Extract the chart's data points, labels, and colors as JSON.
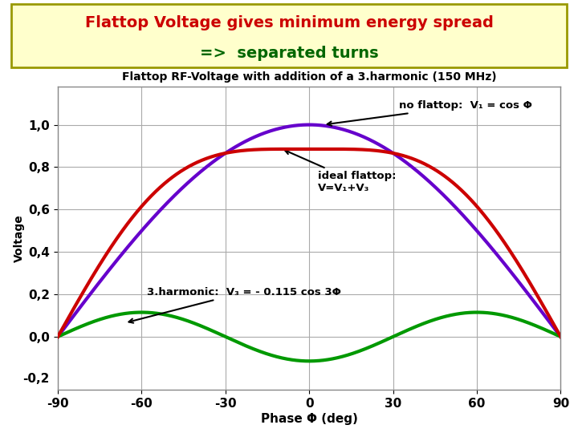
{
  "title_line1": "Flattop Voltage gives minimum energy spread",
  "title_line2": "=>  separated turns",
  "subtitle": "Flattop RF-Voltage with addition of a 3.harmonic (150 MHz)",
  "ylabel": "Voltage",
  "xlabel": "Phase Φ (deg)",
  "xlim": [
    -90,
    90
  ],
  "ylim": [
    -0.25,
    1.18
  ],
  "xticks": [
    -90,
    -60,
    -30,
    0,
    30,
    60,
    90
  ],
  "yticks": [
    0.0,
    0.2,
    0.4,
    0.6,
    0.8,
    1.0
  ],
  "ytick_labels": [
    "0,0",
    "0,2",
    "0,4",
    "0,6",
    "0,8",
    "1,0"
  ],
  "xtick_labels": [
    "-90",
    "-60",
    "-30",
    "0",
    "30",
    "60",
    "90"
  ],
  "color_cos": "#6600cc",
  "color_flattop": "#cc0000",
  "color_harmonic": "#009900",
  "title_bg": "#ffffcc",
  "title_border": "#999900",
  "title1_color": "#cc0000",
  "title2_color": "#006600",
  "annotation_flattop_text": "no flattop:  V₁ = cos Φ",
  "annotation_ideal_text": "ideal flattop:\nV=V₁+V₃",
  "annotation_harmonic_text": "3.harmonic:  V₃ = - 0.115 cos 3Φ",
  "line_width": 3.0,
  "background_color": "#ffffff",
  "grid_color": "#aaaaaa"
}
